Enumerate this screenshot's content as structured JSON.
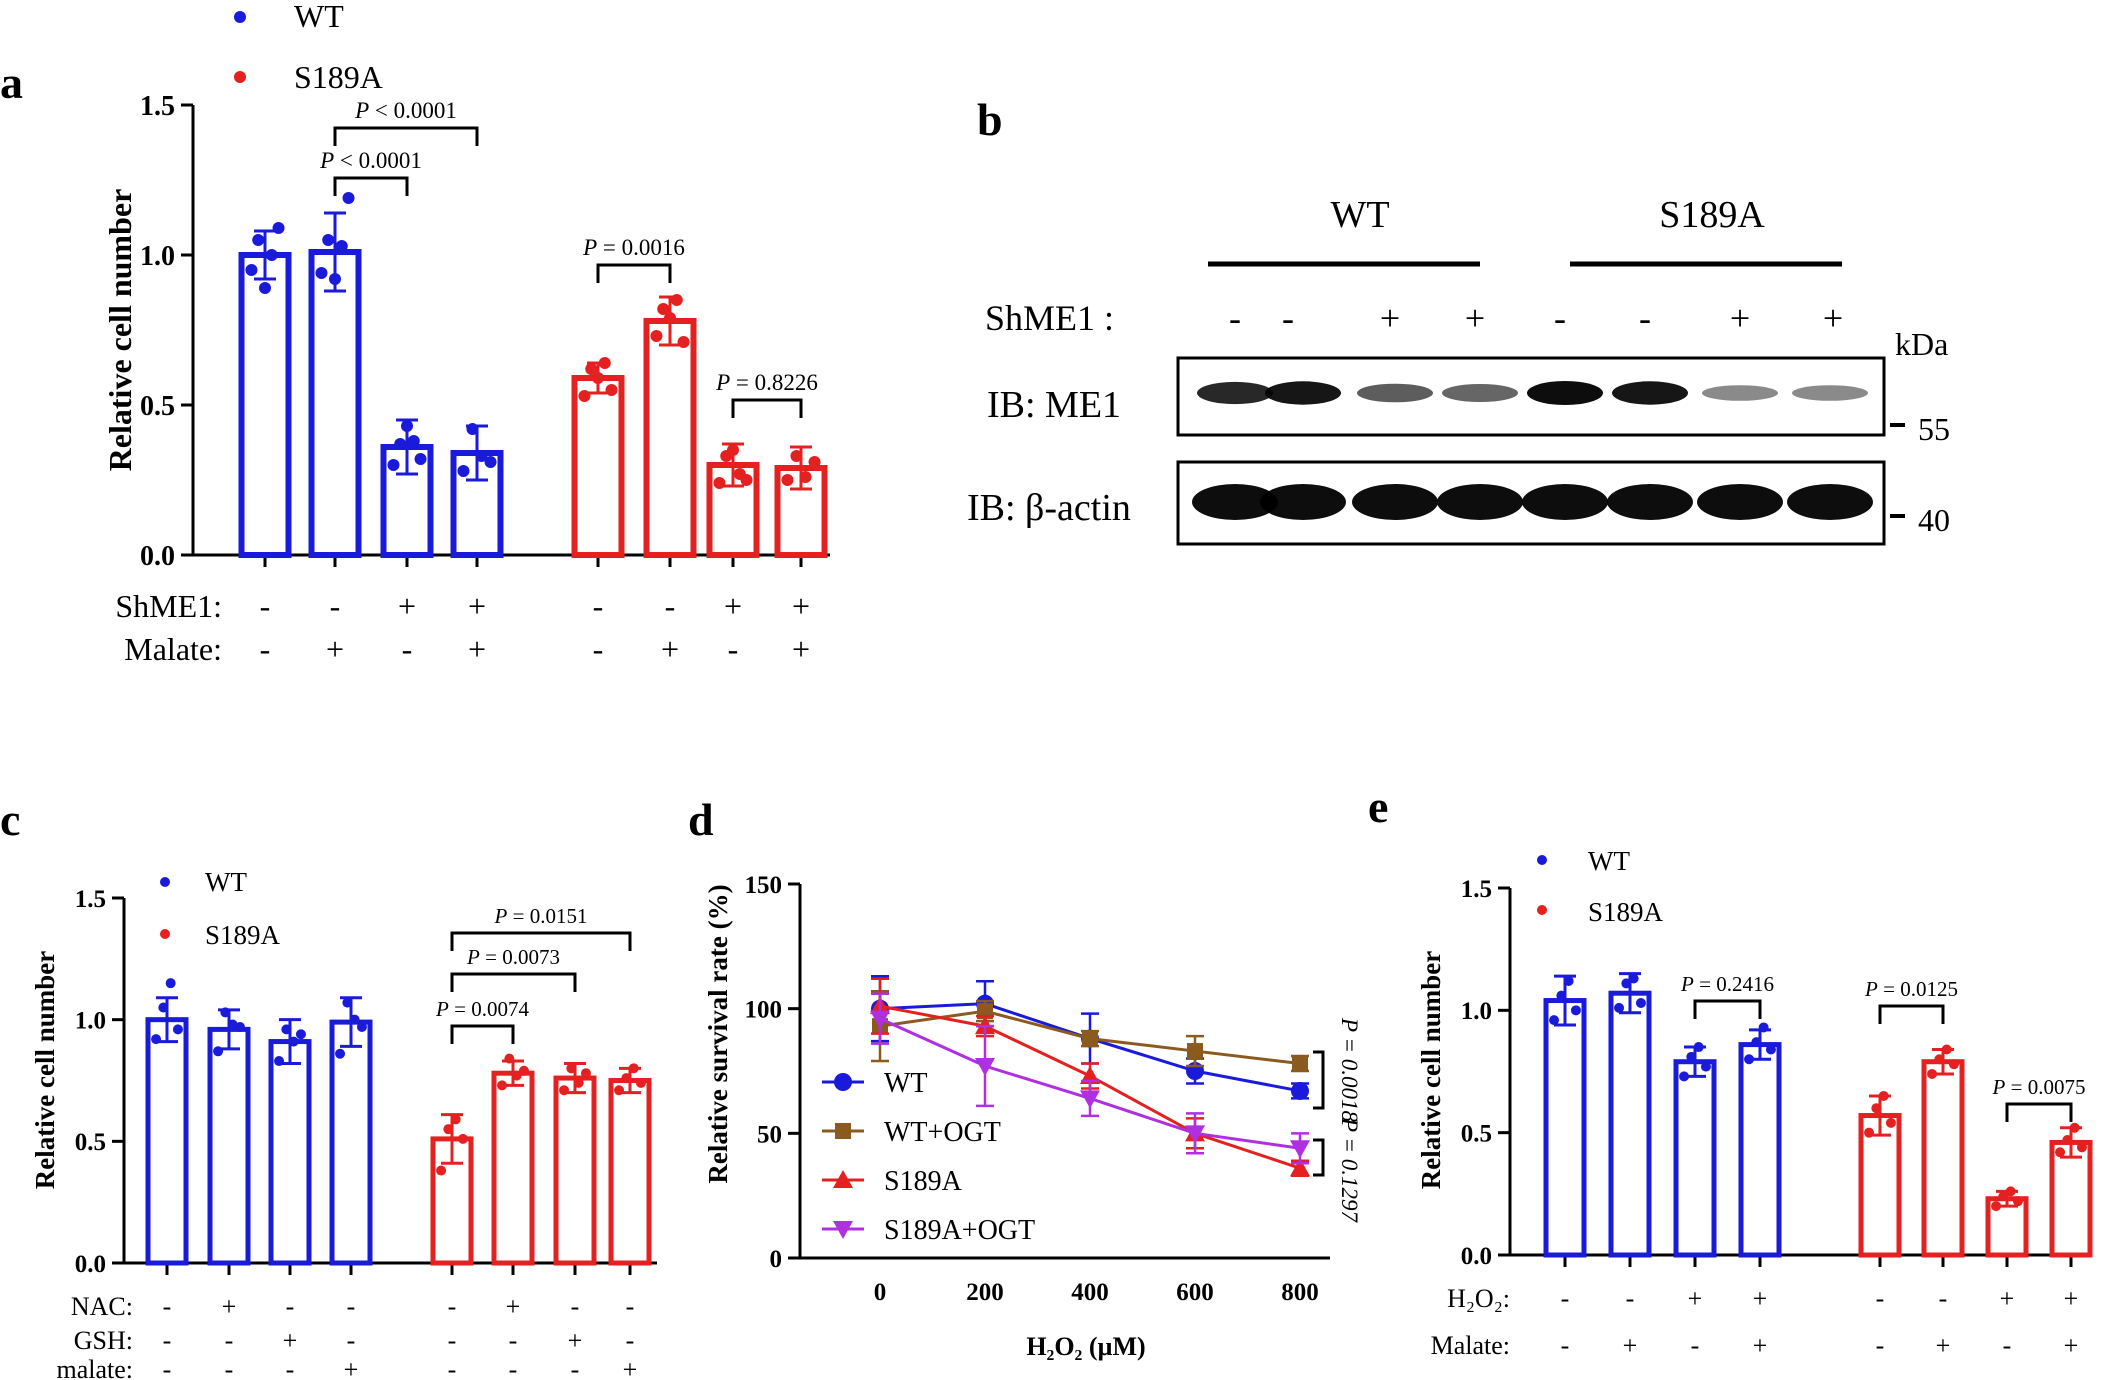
{
  "colors": {
    "wt": "#1a1adb",
    "s189a": "#e52020",
    "wt_ogt": "#8b5a1e",
    "s189a_ogt": "#b030e0",
    "axis": "#000000"
  },
  "panel_a": {
    "label": "a",
    "legend": [
      "WT",
      "S189A"
    ],
    "ylabel": "Relative cell number",
    "yticks": [
      "0.0",
      "0.5",
      "1.0",
      "1.5"
    ],
    "row_labels": [
      "ShME1:",
      "Malate:"
    ],
    "row_signs": [
      [
        "-",
        "-",
        "+",
        "+",
        "-",
        "-",
        "+",
        "+"
      ],
      [
        "-",
        "+",
        "-",
        "+",
        "-",
        "+",
        "-",
        "+"
      ]
    ],
    "brackets": [
      {
        "p": "< 0.0001"
      },
      {
        "p": "< 0.0001"
      },
      {
        "p": "= 0.0016"
      },
      {
        "p": "= 0.8226"
      }
    ]
  },
  "panel_b": {
    "label": "b",
    "groups": [
      "WT",
      "S189A"
    ],
    "shme1_label": "ShME1 :",
    "shme1_signs": [
      "-",
      "-",
      "+",
      "+",
      "-",
      "-",
      "+",
      "+"
    ],
    "rows": [
      "IB: ME1",
      "IB: β-actin"
    ],
    "kda_label": "kDa",
    "markers": [
      "55",
      "40"
    ]
  },
  "panel_c": {
    "label": "c",
    "legend": [
      "WT",
      "S189A"
    ],
    "ylabel": "Relative cell number",
    "yticks": [
      "0.0",
      "0.5",
      "1.0",
      "1.5"
    ],
    "row_labels": [
      "NAC:",
      "GSH:",
      "malate:"
    ],
    "row_signs": [
      [
        "-",
        "+",
        "-",
        "-",
        "-",
        "+",
        "-",
        "-"
      ],
      [
        "-",
        "-",
        "+",
        "-",
        "-",
        "-",
        "+",
        "-"
      ],
      [
        "-",
        "-",
        "-",
        "+",
        "-",
        "-",
        "-",
        "+"
      ]
    ],
    "brackets": [
      {
        "p": "= 0.0151"
      },
      {
        "p": "= 0.0073"
      },
      {
        "p": "= 0.0074"
      }
    ]
  },
  "panel_d": {
    "label": "d",
    "ylabel": "Relative survival rate (%)",
    "xlabel": "H₂O₂ (µM)",
    "xticks": [
      "0",
      "200",
      "400",
      "600",
      "800"
    ],
    "yticks": [
      "0",
      "50",
      "100",
      "150"
    ],
    "legend": [
      "WT",
      "WT+OGT",
      "S189A",
      "S189A+OGT"
    ],
    "pvals": [
      "P = 0.0018",
      "P = 0.1297"
    ]
  },
  "panel_e": {
    "label": "e",
    "legend": [
      "WT",
      "S189A"
    ],
    "ylabel": "Relative cell number",
    "yticks": [
      "0.0",
      "0.5",
      "1.0",
      "1.5"
    ],
    "row_labels": [
      "H₂O₂:",
      "Malate:"
    ],
    "row_signs": [
      [
        "-",
        "-",
        "+",
        "+",
        "-",
        "-",
        "+",
        "+"
      ],
      [
        "-",
        "+",
        "-",
        "+",
        "-",
        "+",
        "-",
        "+"
      ]
    ],
    "brackets": [
      {
        "p": "= 0.2416"
      },
      {
        "p": "= 0.0125"
      },
      {
        "p": "= 0.0075"
      }
    ]
  },
  "chart_data": [
    {
      "panel": "a",
      "type": "bar",
      "ylabel": "Relative cell number",
      "ylim": [
        0,
        1.5
      ],
      "series": [
        {
          "name": "WT",
          "values": [
            1.0,
            1.01,
            0.36,
            0.34
          ],
          "errors": [
            0.08,
            0.13,
            0.09,
            0.09
          ],
          "points": [
            [
              0.95,
              1.05,
              0.89,
              1.0,
              1.09
            ],
            [
              0.94,
              1.05,
              0.92,
              1.03,
              1.19
            ],
            [
              0.3,
              0.37,
              0.43,
              0.38,
              0.32
            ],
            [
              0.28,
              0.42,
              0.33,
              0.31
            ]
          ]
        },
        {
          "name": "S189A",
          "values": [
            0.59,
            0.78,
            0.3,
            0.29
          ],
          "errors": [
            0.05,
            0.08,
            0.07,
            0.07
          ],
          "points": [
            [
              0.53,
              0.62,
              0.59,
              0.64,
              0.55
            ],
            [
              0.73,
              0.82,
              0.79,
              0.85,
              0.71
            ],
            [
              0.24,
              0.33,
              0.35,
              0.27,
              0.25
            ],
            [
              0.25,
              0.33,
              0.26,
              0.31
            ]
          ]
        }
      ]
    },
    {
      "panel": "c",
      "type": "bar",
      "ylabel": "Relative cell number",
      "ylim": [
        0,
        1.5
      ],
      "series": [
        {
          "name": "WT",
          "values": [
            1.0,
            0.96,
            0.91,
            0.99
          ],
          "errors": [
            0.09,
            0.08,
            0.09,
            0.1
          ],
          "points": [
            [
              0.92,
              1.05,
              1.15,
              0.96
            ],
            [
              0.87,
              1.03,
              0.98,
              0.97
            ],
            [
              0.83,
              0.96,
              0.91,
              0.94
            ],
            [
              0.86,
              1.07,
              1.0,
              0.97
            ]
          ]
        },
        {
          "name": "S189A",
          "values": [
            0.51,
            0.78,
            0.76,
            0.75
          ],
          "errors": [
            0.1,
            0.05,
            0.06,
            0.05
          ],
          "points": [
            [
              0.38,
              0.55,
              0.59,
              0.51
            ],
            [
              0.73,
              0.84,
              0.77,
              0.79
            ],
            [
              0.71,
              0.8,
              0.74,
              0.78
            ],
            [
              0.71,
              0.76,
              0.8,
              0.74
            ]
          ]
        }
      ]
    },
    {
      "panel": "d",
      "type": "line",
      "xlabel": "H2O2 (uM)",
      "ylabel": "Relative survival rate (%)",
      "x": [
        0,
        200,
        400,
        600,
        800
      ],
      "ylim": [
        0,
        150
      ],
      "series": [
        {
          "name": "WT",
          "values": [
            100,
            102,
            88,
            75,
            67
          ],
          "errors": [
            13,
            9,
            10,
            5,
            3
          ]
        },
        {
          "name": "WT+OGT",
          "values": [
            93,
            99,
            88,
            83,
            78
          ],
          "errors": [
            14,
            4,
            3,
            6,
            3
          ]
        },
        {
          "name": "S189A",
          "values": [
            101,
            93,
            73,
            50,
            36
          ],
          "errors": [
            11,
            4,
            5,
            6,
            3
          ]
        },
        {
          "name": "S189A+OGT",
          "values": [
            96,
            77,
            64,
            50,
            44
          ],
          "errors": [
            10,
            16,
            7,
            8,
            6
          ]
        }
      ]
    },
    {
      "panel": "e",
      "type": "bar",
      "ylabel": "Relative cell number",
      "ylim": [
        0,
        1.5
      ],
      "series": [
        {
          "name": "WT",
          "values": [
            1.04,
            1.07,
            0.79,
            0.86
          ],
          "errors": [
            0.1,
            0.08,
            0.06,
            0.06
          ],
          "points": [
            [
              0.96,
              1.06,
              1.12,
              1.0
            ],
            [
              1.01,
              1.11,
              1.13,
              1.03
            ],
            [
              0.73,
              0.81,
              0.85,
              0.77
            ],
            [
              0.8,
              0.87,
              0.93,
              0.84
            ]
          ]
        },
        {
          "name": "S189A",
          "values": [
            0.57,
            0.79,
            0.23,
            0.46
          ],
          "errors": [
            0.08,
            0.05,
            0.03,
            0.06
          ],
          "points": [
            [
              0.5,
              0.6,
              0.65,
              0.54
            ],
            [
              0.74,
              0.8,
              0.84,
              0.78
            ],
            [
              0.2,
              0.24,
              0.26,
              0.22
            ],
            [
              0.42,
              0.47,
              0.52,
              0.44
            ]
          ]
        }
      ]
    }
  ]
}
